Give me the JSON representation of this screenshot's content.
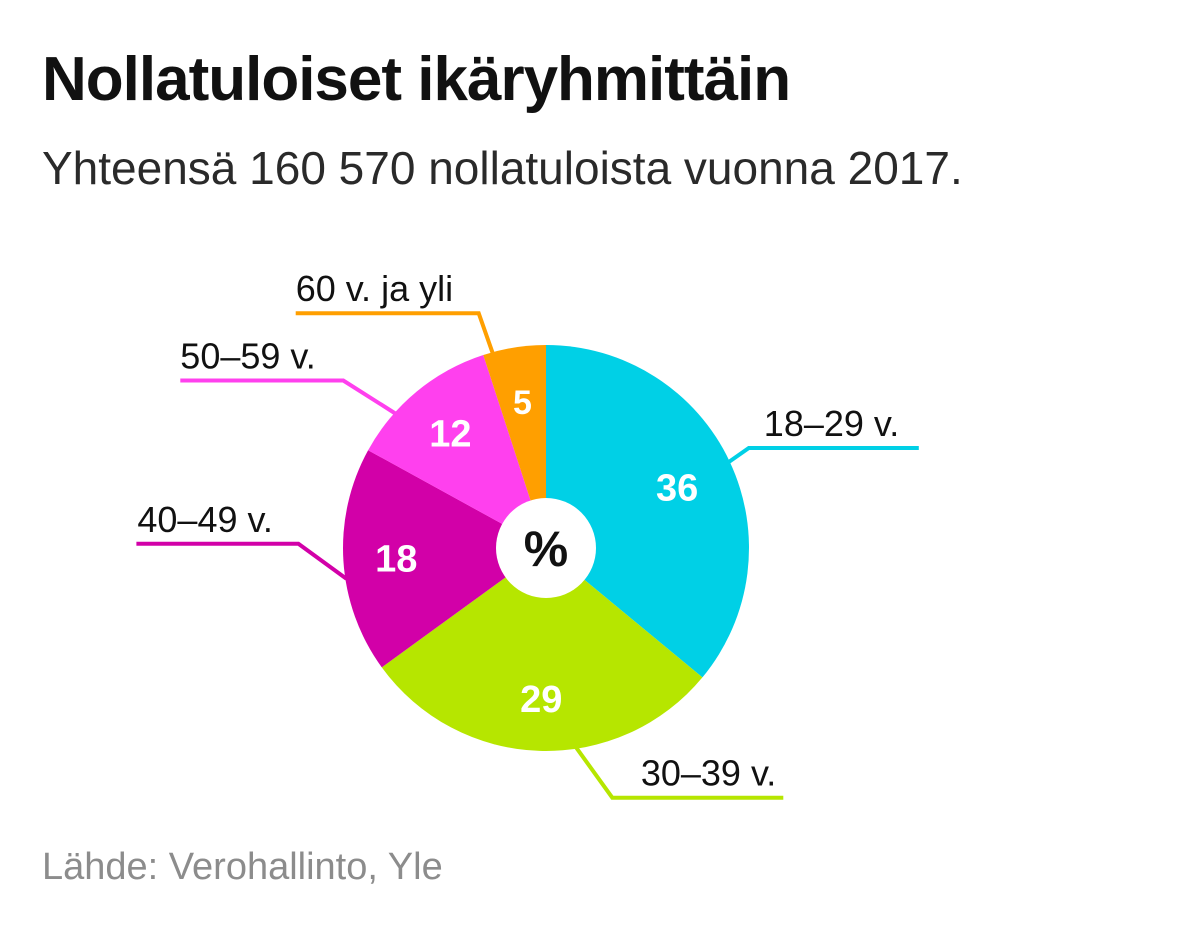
{
  "header": {
    "title": "Nollatuloiset ikäryhmittäin",
    "subtitle": "Yhteensä 160 570 nollatuloista vuonna 2017."
  },
  "footer": {
    "source": "Lähde: Verohallinto, Yle"
  },
  "chart_data": {
    "type": "pie",
    "center_label": "%",
    "unit": "%",
    "slices": [
      {
        "label": "18–29 v.",
        "value": 36,
        "color": "#00d0e6"
      },
      {
        "label": "30–39 v.",
        "value": 29,
        "color": "#b6e600"
      },
      {
        "label": "40–49 v.",
        "value": 18,
        "color": "#d200a8"
      },
      {
        "label": "50–59 v.",
        "value": 12,
        "color": "#ff40ee"
      },
      {
        "label": "60 v. ja yli",
        "value": 5,
        "color": "#ff9f00"
      }
    ]
  }
}
